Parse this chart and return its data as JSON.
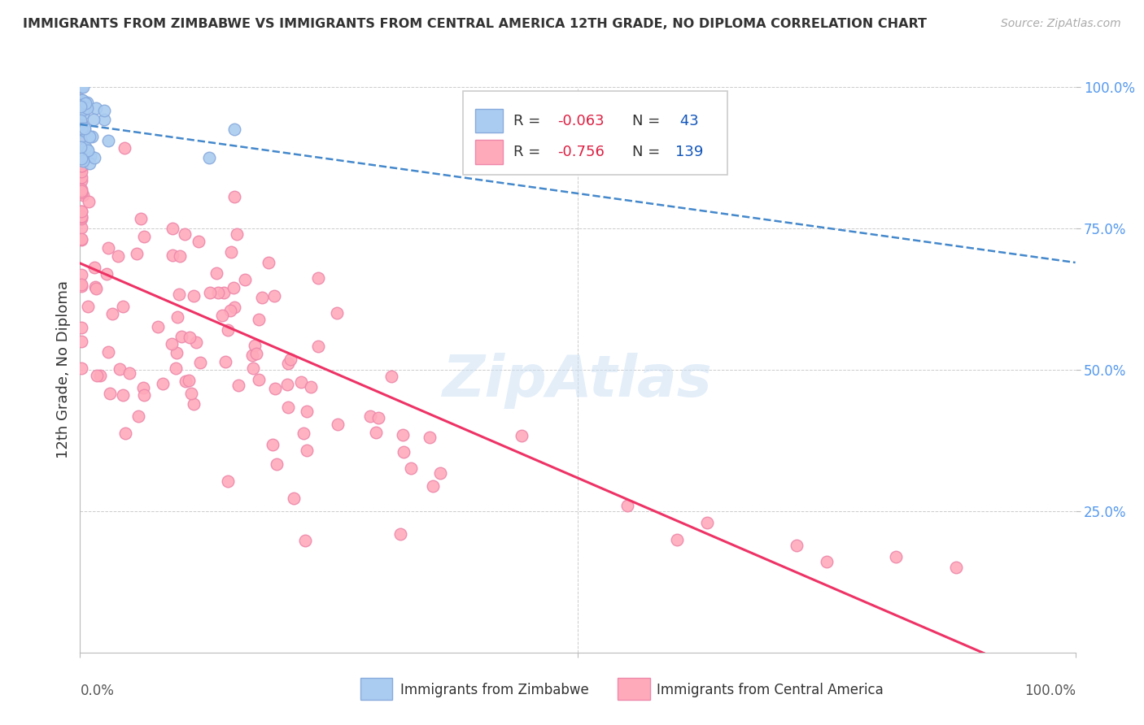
{
  "title": "IMMIGRANTS FROM ZIMBABWE VS IMMIGRANTS FROM CENTRAL AMERICA 12TH GRADE, NO DIPLOMA CORRELATION CHART",
  "source": "Source: ZipAtlas.com",
  "ylabel": "12th Grade, No Diploma",
  "legend_r1": "-0.063",
  "legend_n1": "43",
  "legend_r2": "-0.756",
  "legend_n2": "139",
  "series1_color": "#aaccf0",
  "series1_edge": "#88aadd",
  "series1_line_color": "#4488cc",
  "series2_color": "#ffaabb",
  "series2_edge": "#ee88aa",
  "series2_line_color": "#ee3366",
  "background_color": "#ffffff",
  "grid_color": "#cccccc",
  "text_color_dark": "#333333",
  "text_color_r": "#dd2244",
  "text_color_n": "#1155bb",
  "watermark_color": "#cce0f5"
}
